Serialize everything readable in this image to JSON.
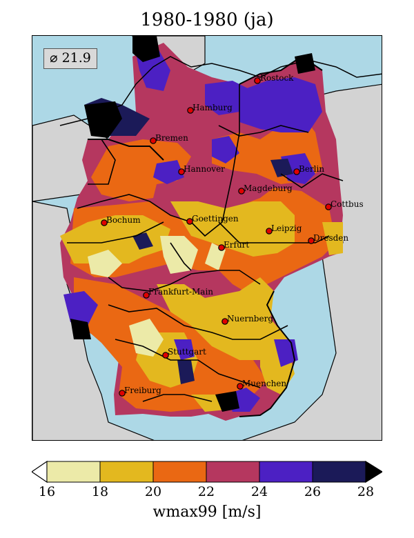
{
  "title": "1980-1980 (ja)",
  "mean_label": "⌀ 21.9",
  "colorbar": {
    "label": "wmax99 [m/s]",
    "ticks": [
      "16",
      "18",
      "20",
      "22",
      "24",
      "26",
      "28"
    ],
    "colors": [
      "#eceaa8",
      "#e3b81f",
      "#ea6813",
      "#b5375f",
      "#4c20c3",
      "#1b1a58"
    ],
    "under_color": "#ffffff",
    "over_color": "#000000"
  },
  "map": {
    "sea_color": "#add8e6",
    "land_color": "#d3d3d3"
  },
  "cities": [
    {
      "name": "Rostock"
    },
    {
      "name": "Hamburg"
    },
    {
      "name": "Bremen"
    },
    {
      "name": "Hannover"
    },
    {
      "name": "Berlin"
    },
    {
      "name": "Magdeburg"
    },
    {
      "name": "Cottbus"
    },
    {
      "name": "Bochum"
    },
    {
      "name": "Goettingen"
    },
    {
      "name": "Leipzig"
    },
    {
      "name": "Dresden"
    },
    {
      "name": "Erfurt"
    },
    {
      "name": "Frankfurt-Main"
    },
    {
      "name": "Nuernberg"
    },
    {
      "name": "Stuttgart"
    },
    {
      "name": "Muenchen"
    },
    {
      "name": "Freiburg"
    }
  ]
}
